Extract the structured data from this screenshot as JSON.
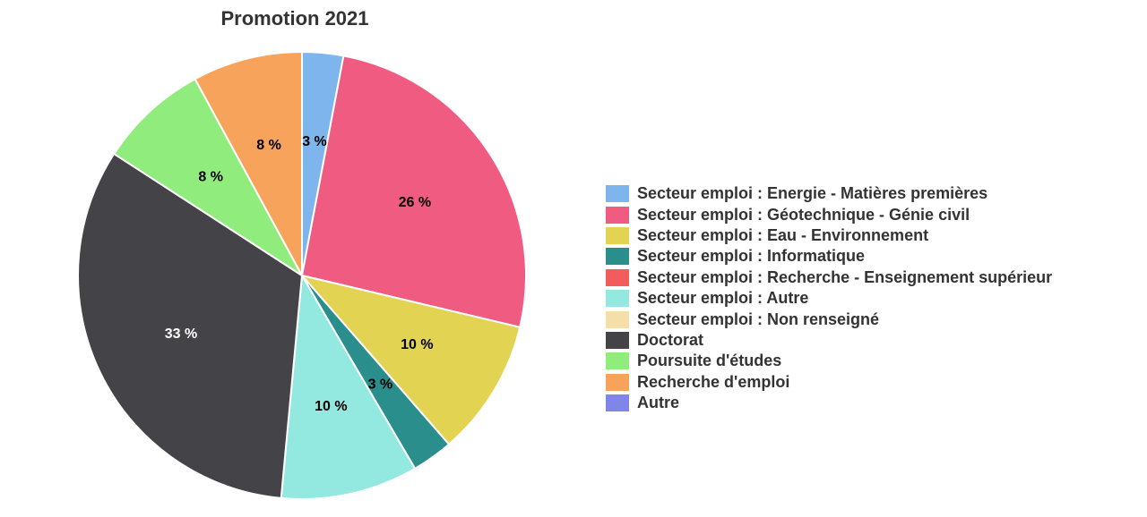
{
  "chart_data": {
    "type": "pie",
    "title": "Promotion 2021",
    "legend_position": "right",
    "slices": [
      {
        "label": "Secteur emploi : Energie - Matières premières",
        "value": 3,
        "display": "3 %",
        "color": "#7eb5ec"
      },
      {
        "label": "Secteur emploi : Géotechnique - Génie civil",
        "value": 26,
        "display": "26 %",
        "color": "#f05b82"
      },
      {
        "label": "Secteur emploi : Eau - Environnement",
        "value": 10,
        "display": "10 %",
        "color": "#e3d353"
      },
      {
        "label": "Secteur emploi : Informatique",
        "value": 3,
        "display": "3 %",
        "color": "#2a8f8c"
      },
      {
        "label": "Secteur emploi : Recherche - Enseignement supérieur",
        "value": 0,
        "display": "",
        "color": "#f25c5c"
      },
      {
        "label": "Secteur emploi : Autre",
        "value": 10,
        "display": "10 %",
        "color": "#93e9e0"
      },
      {
        "label": "Secteur emploi : Non renseigné",
        "value": 0,
        "display": "",
        "color": "#f6dea9"
      },
      {
        "label": "Doctorat",
        "value": 33,
        "display": "33 %",
        "color": "#434348"
      },
      {
        "label": "Poursuite d'études",
        "value": 8,
        "display": "8 %",
        "color": "#90ed7d"
      },
      {
        "label": "Recherche d'emploi",
        "value": 8,
        "display": "8 %",
        "color": "#f7a35c"
      },
      {
        "label": "Autre",
        "value": 0,
        "display": "",
        "color": "#8085e9"
      }
    ]
  }
}
